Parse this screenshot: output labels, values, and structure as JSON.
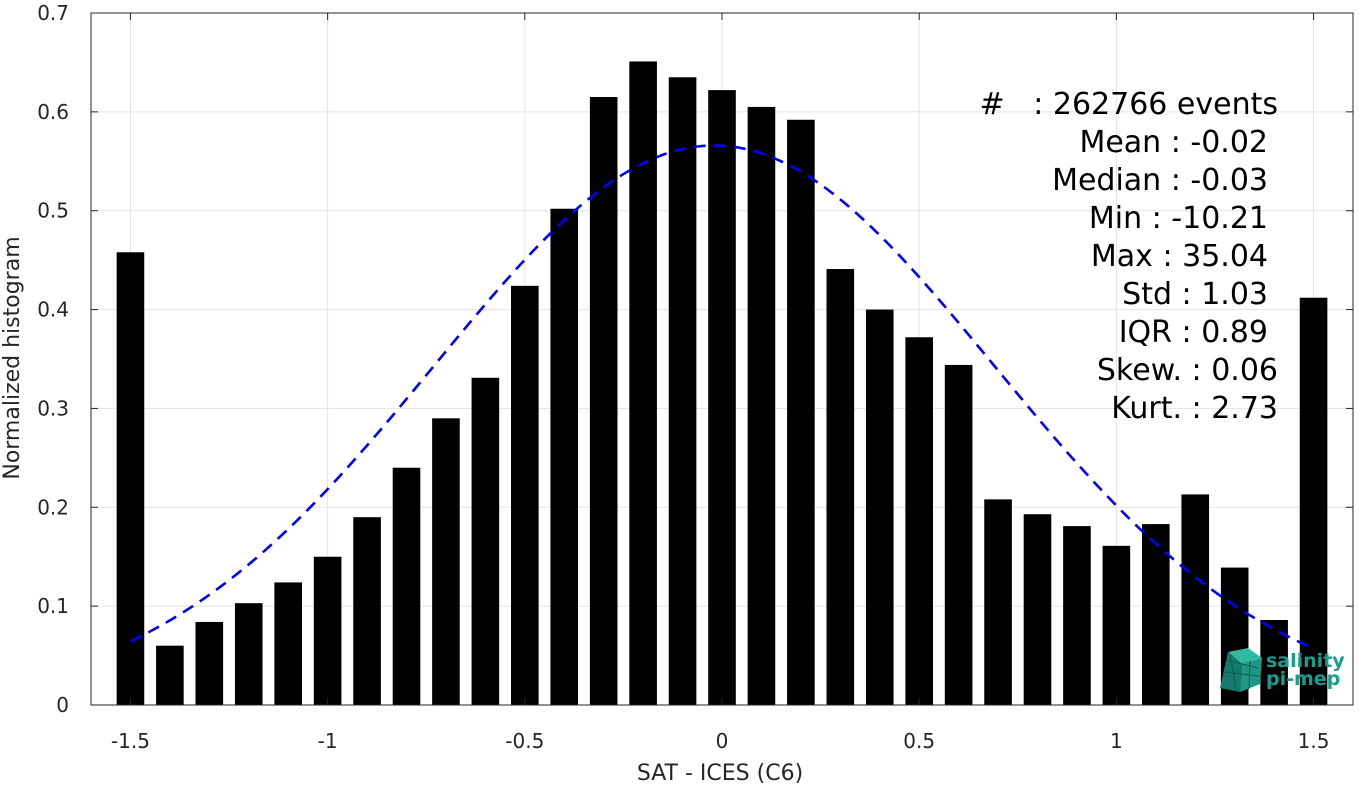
{
  "chart_data": {
    "type": "bar",
    "xlabel": "SAT - ICES (C6)",
    "ylabel": "Normalized histogram",
    "xlim": [
      -1.6,
      1.6
    ],
    "ylim": [
      0,
      0.7
    ],
    "xticks": [
      -1.5,
      -1,
      -0.5,
      0,
      0.5,
      1,
      1.5
    ],
    "xtick_labels": [
      "-1.5",
      "-1",
      "-0.5",
      "0",
      "0.5",
      "1",
      "1.5"
    ],
    "yticks": [
      0,
      0.1,
      0.2,
      0.3,
      0.4,
      0.5,
      0.6,
      0.7
    ],
    "ytick_labels": [
      "0",
      "0.1",
      "0.2",
      "0.3",
      "0.4",
      "0.5",
      "0.6",
      "0.7"
    ],
    "grid": true,
    "bar_width": 0.07,
    "bar_color": "#000000",
    "series": [
      {
        "x": [
          -1.5,
          -1.4,
          -1.3,
          -1.2,
          -1.1,
          -1.0,
          -0.9,
          -0.8,
          -0.7,
          -0.6,
          -0.5,
          -0.4,
          -0.3,
          -0.2,
          -0.1,
          0.0,
          0.1,
          0.2,
          0.3,
          0.4,
          0.5,
          0.6,
          0.7,
          0.8,
          0.9,
          1.0,
          1.1,
          1.2,
          1.3,
          1.4,
          1.5
        ],
        "values": [
          0.458,
          0.06,
          0.084,
          0.103,
          0.124,
          0.15,
          0.19,
          0.24,
          0.29,
          0.331,
          0.424,
          0.502,
          0.615,
          0.651,
          0.635,
          0.622,
          0.605,
          0.592,
          0.441,
          0.4,
          0.372,
          0.344,
          0.208,
          0.193,
          0.181,
          0.161,
          0.183,
          0.213,
          0.139,
          0.086,
          0.412
        ]
      }
    ],
    "fit_curve": {
      "style": "dashed",
      "color": "#0000ff",
      "x_range": [
        -1.5,
        1.5
      ],
      "mean": -0.02,
      "std": 0.71,
      "peak": 0.566
    }
  },
  "stats": {
    "count": "#   : 262766 events",
    "mean": "Mean : -0.02",
    "median": "Median : -0.03",
    "min": "Min : -10.21",
    "max": "Max : 35.04",
    "std": "Std : 1.03",
    "iqr": "IQR : 0.89",
    "skew": "Skew. : 0.06",
    "kurt": "Kurt. : 2.73"
  },
  "logo": {
    "line1": "salinity",
    "line2": "pi-mep",
    "color": "#1a9c8c"
  }
}
